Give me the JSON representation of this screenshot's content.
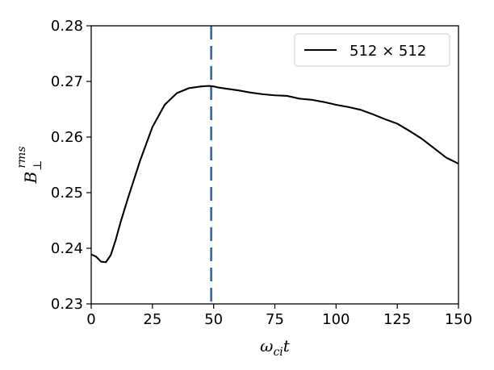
{
  "chart_data": {
    "type": "line",
    "xlabel": "ω_ci t",
    "ylabel": "B_⊥^rms",
    "xlim": [
      0,
      150
    ],
    "ylim": [
      0.23,
      0.28
    ],
    "x_ticks": [
      "0",
      "25",
      "50",
      "75",
      "100",
      "125",
      "150"
    ],
    "y_ticks": [
      "0.23",
      "0.24",
      "0.25",
      "0.26",
      "0.27",
      "0.28"
    ],
    "grid": false,
    "legend_position": "top-right",
    "vline": {
      "x": 49,
      "color": "#3a65a0",
      "style": "dashed"
    },
    "series": [
      {
        "name": "512 × 512",
        "color": "#000000",
        "x": [
          0,
          2,
          4,
          6,
          8,
          10,
          12,
          15,
          20,
          25,
          30,
          35,
          40,
          45,
          48,
          50,
          52,
          55,
          60,
          65,
          70,
          75,
          80,
          85,
          90,
          95,
          100,
          105,
          110,
          115,
          120,
          125,
          130,
          135,
          140,
          145,
          150
        ],
        "y": [
          0.2389,
          0.2385,
          0.2376,
          0.2375,
          0.2388,
          0.2415,
          0.2447,
          0.249,
          0.2558,
          0.2618,
          0.2658,
          0.2679,
          0.2688,
          0.2691,
          0.2692,
          0.2691,
          0.2689,
          0.2687,
          0.2684,
          0.268,
          0.2677,
          0.2675,
          0.2674,
          0.2669,
          0.2667,
          0.2663,
          0.2658,
          0.2654,
          0.2649,
          0.2641,
          0.2632,
          0.2624,
          0.2611,
          0.2597,
          0.258,
          0.2563,
          0.2552
        ]
      }
    ]
  }
}
